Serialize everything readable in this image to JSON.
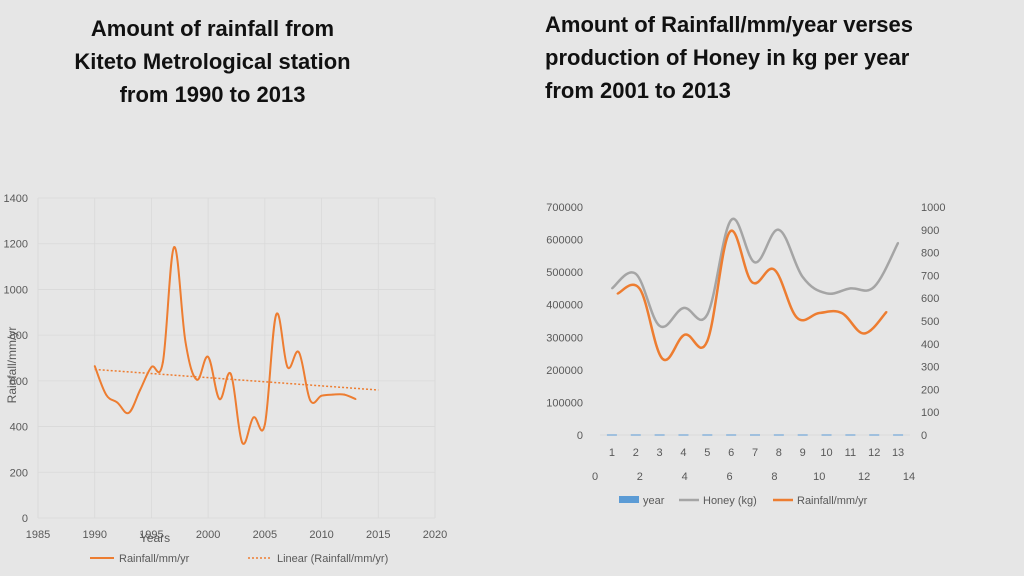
{
  "slide": {
    "title_left_lines": [
      "Amount of rainfall  from",
      "Kiteto Metrological station",
      "from 1990 to 2013"
    ],
    "title_right_lines": [
      "Amount of Rainfall/mm/year verses",
      "production of Honey in kg per year",
      "from 2001 to 2013"
    ]
  },
  "chart_data": [
    {
      "type": "line",
      "title": "",
      "xlabel": "Years",
      "ylabel": "Rainfall/mm/yr",
      "xlim": [
        1985,
        2020
      ],
      "ylim": [
        0,
        1400
      ],
      "x_ticks": [
        1985,
        1990,
        1995,
        2000,
        2005,
        2010,
        2015,
        2020
      ],
      "y_ticks": [
        0,
        200,
        400,
        600,
        800,
        1000,
        1200,
        1400
      ],
      "grid": true,
      "legend": "bottom",
      "series": [
        {
          "name": "Rainfall/mm/yr",
          "color": "#ed7d31",
          "style": "solid-smooth",
          "x": [
            1990,
            1991,
            1992,
            1993,
            1994,
            1995,
            1996,
            1997,
            1998,
            1999,
            2000,
            2001,
            2002,
            2003,
            2004,
            2005,
            2006,
            2007,
            2008,
            2009,
            2010,
            2011,
            2012,
            2013
          ],
          "y": [
            665,
            540,
            505,
            460,
            560,
            660,
            680,
            1185,
            770,
            605,
            705,
            520,
            630,
            330,
            440,
            410,
            890,
            660,
            725,
            515,
            535,
            540,
            540,
            520
          ]
        },
        {
          "name": "Linear (Rainfall/mm/yr)",
          "color": "#ed7d31",
          "style": "dotted",
          "x": [
            1990,
            2015
          ],
          "y": [
            650,
            560
          ]
        }
      ]
    },
    {
      "type": "line",
      "title": "",
      "x_categories": [
        "1",
        "2",
        "3",
        "4",
        "5",
        "6",
        "7",
        "8",
        "9",
        "10",
        "11",
        "12",
        "13"
      ],
      "x2_ticks": [
        "0",
        "2",
        "4",
        "6",
        "8",
        "10",
        "12",
        "14"
      ],
      "x2lim": [
        0,
        14
      ],
      "ylim": [
        0,
        700000
      ],
      "y_ticks": [
        "0",
        "100000",
        "200000",
        "300000",
        "400000",
        "500000",
        "600000",
        "700000"
      ],
      "y2lim": [
        0,
        1000
      ],
      "y2_ticks": [
        "0",
        "100",
        "200",
        "300",
        "400",
        "500",
        "600",
        "700",
        "800",
        "900",
        "1000"
      ],
      "grid": false,
      "legend": "bottom",
      "series": [
        {
          "name": "year",
          "color": "#5b9bd5",
          "axis": "left",
          "values": [
            1,
            2,
            3,
            4,
            5,
            6,
            7,
            8,
            9,
            10,
            11,
            12,
            13
          ]
        },
        {
          "name": "Honey (kg)",
          "color": "#a5a5a5",
          "axis": "left",
          "values": [
            450000,
            495000,
            335000,
            390000,
            370000,
            660000,
            530000,
            630000,
            485000,
            435000,
            450000,
            455000,
            590000
          ]
        },
        {
          "name": "Rainfall/mm/yr",
          "color": "#ed7d31",
          "axis": "right",
          "x": [
            1,
            2,
            3,
            4,
            5,
            6,
            7,
            8,
            9,
            10,
            11,
            12,
            13
          ],
          "values": [
            620,
            640,
            335,
            440,
            410,
            890,
            670,
            725,
            515,
            535,
            535,
            445,
            540
          ]
        }
      ]
    }
  ]
}
